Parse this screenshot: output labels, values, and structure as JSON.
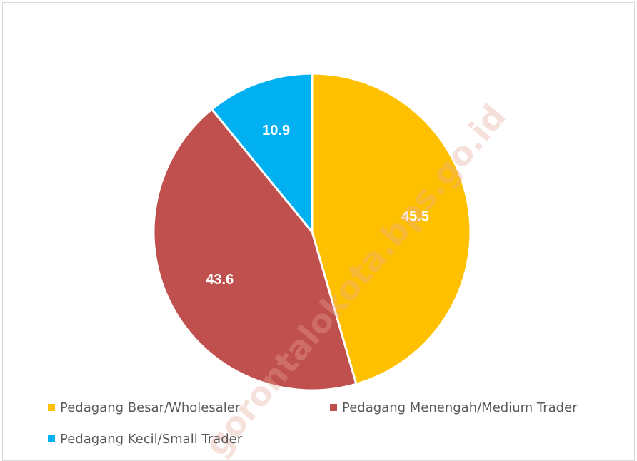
{
  "chart_data": {
    "type": "pie",
    "categories": [
      "Pedagang Besar/Wholesaler",
      "Pedagang Menengah/Medium Trader",
      "Pedagang Kecil/Small Trader"
    ],
    "values": [
      45.5,
      43.6,
      10.9
    ],
    "colors": [
      "#ffc000",
      "#c0504d",
      "#00b0f0"
    ],
    "watermark": "gorontalokota.bps.go.id",
    "legend": "bottom"
  }
}
